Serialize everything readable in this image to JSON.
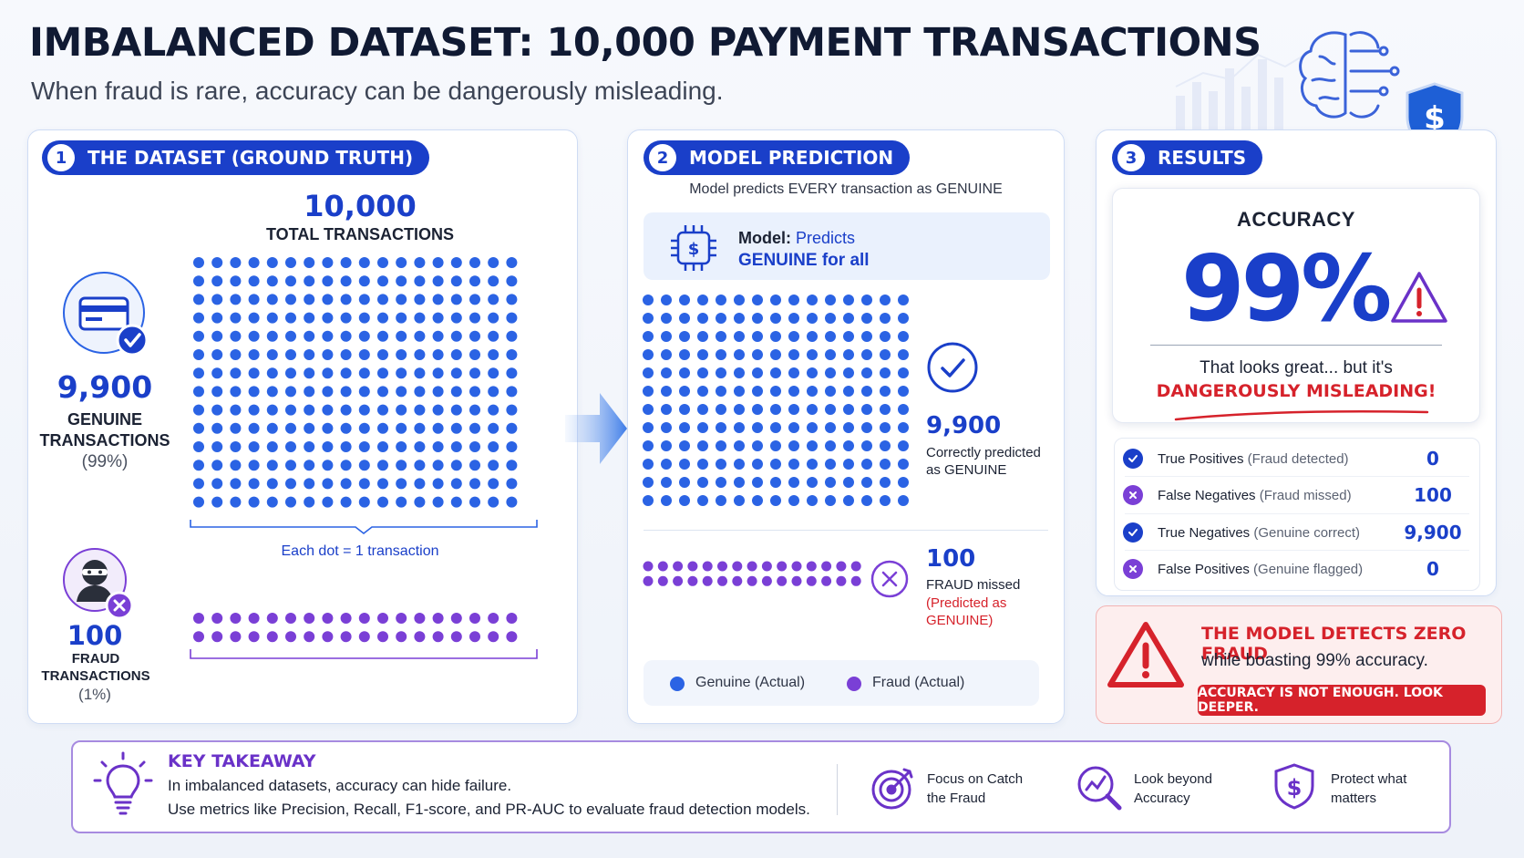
{
  "header": {
    "title": "IMBALANCED DATASET: 10,000 PAYMENT TRANSACTIONS",
    "subtitle": "When fraud is rare, accuracy can be dangerously misleading."
  },
  "panel1": {
    "num": "1",
    "label": "THE DATASET (GROUND TRUTH)",
    "total_value": "10,000",
    "total_label": "TOTAL TRANSACTIONS",
    "genuine_value": "9,900",
    "genuine_label": "GENUINE TRANSACTIONS",
    "genuine_pct": "(99%)",
    "dot_note": "Each dot = 1 transaction",
    "fraud_value": "100",
    "fraud_label": "FRAUD TRANSACTIONS",
    "fraud_pct": "(1%)"
  },
  "panel2": {
    "num": "2",
    "label": "MODEL PREDICTION",
    "subtitle": "Model predicts EVERY transaction as GENUINE",
    "model_prefix": "Model:",
    "model_predicts": "Predicts",
    "model_line2": "GENUINE for all",
    "correct_value": "9,900",
    "correct_label": "Correctly predicted as GENUINE",
    "missed_value": "100",
    "missed_label": "FRAUD missed",
    "missed_note": "(Predicted as GENUINE)",
    "legend_genuine": "Genuine (Actual)",
    "legend_fraud": "Fraud (Actual)"
  },
  "panel3": {
    "num": "3",
    "label": "RESULTS",
    "accuracy_label": "ACCURACY",
    "accuracy_value": "99%",
    "accuracy_comment": "That looks great... but it's",
    "accuracy_warning": "DANGEROUSLY MISLEADING!",
    "metrics": [
      {
        "name": "True Positives",
        "note": "(Fraud detected)",
        "value": "0",
        "icon": "check-icon"
      },
      {
        "name": "False Negatives",
        "note": "(Fraud missed)",
        "value": "100",
        "icon": "x-icon"
      },
      {
        "name": "True Negatives",
        "note": "(Genuine correct)",
        "value": "9,900",
        "icon": "check-icon"
      },
      {
        "name": "False Positives",
        "note": "(Genuine flagged)",
        "value": "0",
        "icon": "x-icon"
      }
    ]
  },
  "alert": {
    "title": "THE MODEL DETECTS ZERO FRAUD",
    "subtitle": "while boasting 99% accuracy.",
    "button": "ACCURACY IS NOT ENOUGH. LOOK DEEPER."
  },
  "takeaway": {
    "title": "KEY TAKEAWAY",
    "line1": "In imbalanced datasets, accuracy can hide failure.",
    "line2": "Use metrics like Precision, Recall, F1-score, and PR-AUC to evaluate fraud detection models.",
    "items": [
      {
        "label": "Focus on Catch the Fraud",
        "icon": "target-icon"
      },
      {
        "label": "Look beyond Accuracy",
        "icon": "magnifier-chart-icon"
      },
      {
        "label": "Protect what matters",
        "icon": "dollar-shield-icon"
      }
    ]
  },
  "colors": {
    "brand_blue": "#1a3fc9",
    "genuine_dot": "#2b63e4",
    "fraud_dot": "#7a3fd6",
    "alert_red": "#d6222b",
    "takeaway_purple": "#6a32c8"
  }
}
